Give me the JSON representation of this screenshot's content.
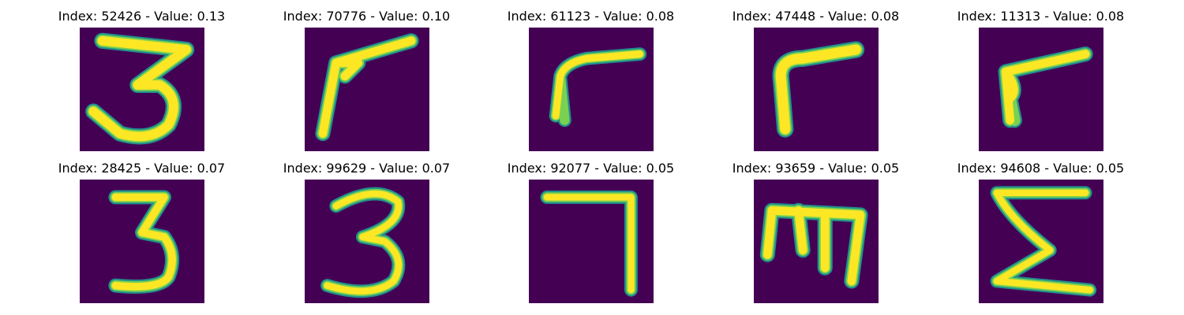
{
  "figure": {
    "panels": [
      {
        "title": "Index: 52426 - Value: 0.13",
        "glyph": "3-wide"
      },
      {
        "title": "Index: 70776 - Value: 0.10",
        "glyph": "flag-stroke"
      },
      {
        "title": "Index: 61123 - Value: 0.08",
        "glyph": "gamma-stroke"
      },
      {
        "title": "Index: 47448 - Value: 0.08",
        "glyph": "gamma-thick"
      },
      {
        "title": "Index: 11313 - Value: 0.08",
        "glyph": "gamma-short"
      },
      {
        "title": "Index: 28425 - Value: 0.07",
        "glyph": "3-tall"
      },
      {
        "title": "Index: 99629 - Value: 0.07",
        "glyph": "3-round"
      },
      {
        "title": "Index: 92077 - Value: 0.05",
        "glyph": "7-angle"
      },
      {
        "title": "Index: 93659 - Value: 0.05",
        "glyph": "m-comb"
      },
      {
        "title": "Index: 94608 - Value: 0.05",
        "glyph": "sigma"
      }
    ],
    "colors": {
      "background": "#440154",
      "edge": "#21918c",
      "mid": "#7ad151",
      "core": "#fde725"
    }
  }
}
